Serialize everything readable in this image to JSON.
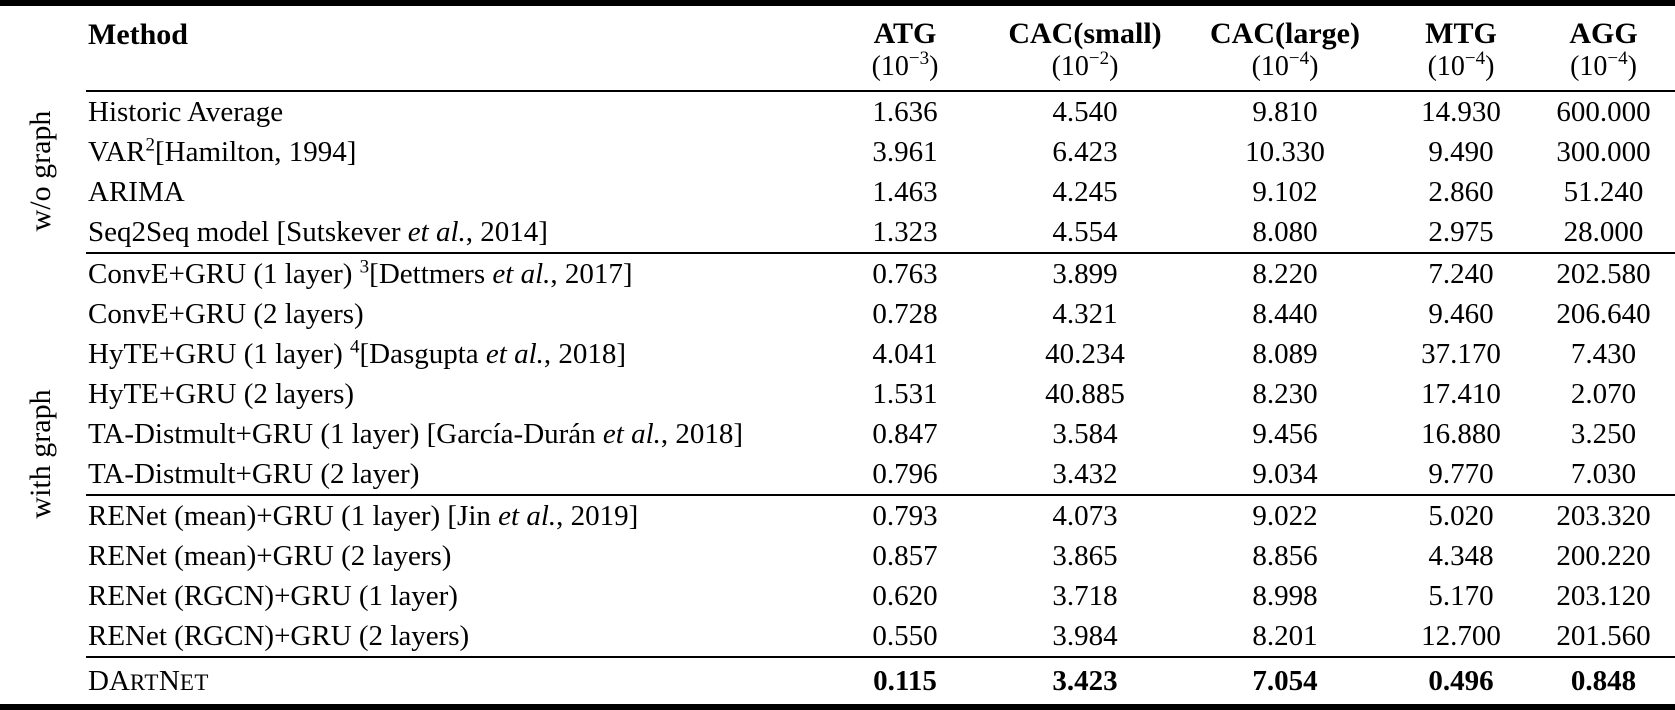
{
  "page": {
    "background": "#ffffff",
    "text_color": "#000000"
  },
  "table": {
    "header": {
      "method_label": "Method",
      "columns": [
        {
          "name": "ATG",
          "scale_pre": "(10",
          "scale_exp": "−3",
          "scale_post": ")"
        },
        {
          "name": "CAC(small)",
          "scale_pre": "(10",
          "scale_exp": "−2",
          "scale_post": ")"
        },
        {
          "name": "CAC(large)",
          "scale_pre": "(10",
          "scale_exp": "−4",
          "scale_post": ")"
        },
        {
          "name": "MTG",
          "scale_pre": "(10",
          "scale_exp": "−4",
          "scale_post": ")"
        },
        {
          "name": "AGG",
          "scale_pre": "(10",
          "scale_exp": "−4",
          "scale_post": ")"
        }
      ]
    },
    "row_groups": [
      {
        "side_label": "w/o graph",
        "blocks": [
          {
            "rows": [
              {
                "method": [
                  {
                    "t": "Historic Average"
                  }
                ],
                "values": [
                  "1.636",
                  "4.540",
                  "9.810",
                  "14.930",
                  "600.000"
                ]
              },
              {
                "method": [
                  {
                    "t": "VAR"
                  },
                  {
                    "t": "2",
                    "sup": true
                  },
                  {
                    "t": "[Hamilton, 1994]"
                  }
                ],
                "values": [
                  "3.961",
                  "6.423",
                  "10.330",
                  "9.490",
                  "300.000"
                ]
              },
              {
                "method": [
                  {
                    "t": "ARIMA"
                  }
                ],
                "values": [
                  "1.463",
                  "4.245",
                  "9.102",
                  "2.860",
                  "51.240"
                ]
              },
              {
                "method": [
                  {
                    "t": "Seq2Seq model [Sutskever "
                  },
                  {
                    "t": "et al.",
                    "i": true
                  },
                  {
                    "t": ", 2014]"
                  }
                ],
                "values": [
                  "1.323",
                  "4.554",
                  "8.080",
                  "2.975",
                  "28.000"
                ]
              }
            ]
          }
        ]
      },
      {
        "side_label": "with graph",
        "blocks": [
          {
            "rows": [
              {
                "method": [
                  {
                    "t": "ConvE+GRU (1 layer) "
                  },
                  {
                    "t": "3",
                    "sup": true
                  },
                  {
                    "t": "[Dettmers "
                  },
                  {
                    "t": "et al.",
                    "i": true
                  },
                  {
                    "t": ", 2017]"
                  }
                ],
                "values": [
                  "0.763",
                  "3.899",
                  "8.220",
                  "7.240",
                  "202.580"
                ]
              },
              {
                "method": [
                  {
                    "t": "ConvE+GRU (2 layers)"
                  }
                ],
                "values": [
                  "0.728",
                  "4.321",
                  "8.440",
                  "9.460",
                  "206.640"
                ]
              },
              {
                "method": [
                  {
                    "t": "HyTE+GRU (1 layer) "
                  },
                  {
                    "t": "4",
                    "sup": true
                  },
                  {
                    "t": "[Dasgupta "
                  },
                  {
                    "t": "et al.",
                    "i": true
                  },
                  {
                    "t": ", 2018]"
                  }
                ],
                "values": [
                  "4.041",
                  "40.234",
                  "8.089",
                  "37.170",
                  "7.430"
                ]
              },
              {
                "method": [
                  {
                    "t": "HyTE+GRU (2 layers)"
                  }
                ],
                "values": [
                  "1.531",
                  "40.885",
                  "8.230",
                  "17.410",
                  "2.070"
                ]
              },
              {
                "method": [
                  {
                    "t": "TA-Distmult+GRU (1 layer) [García-Durán "
                  },
                  {
                    "t": "et al.",
                    "i": true
                  },
                  {
                    "t": ", 2018]"
                  }
                ],
                "values": [
                  "0.847",
                  "3.584",
                  "9.456",
                  "16.880",
                  "3.250"
                ]
              },
              {
                "method": [
                  {
                    "t": "TA-Distmult+GRU (2 layer)"
                  }
                ],
                "values": [
                  "0.796",
                  "3.432",
                  "9.034",
                  "9.770",
                  "7.030"
                ]
              }
            ]
          },
          {
            "rows": [
              {
                "method": [
                  {
                    "t": "RENet (mean)+GRU (1 layer) [Jin "
                  },
                  {
                    "t": "et al.",
                    "i": true
                  },
                  {
                    "t": ", 2019]"
                  }
                ],
                "values": [
                  "0.793",
                  "4.073",
                  "9.022",
                  "5.020",
                  "203.320"
                ]
              },
              {
                "method": [
                  {
                    "t": "RENet (mean)+GRU (2 layers)"
                  }
                ],
                "values": [
                  "0.857",
                  "3.865",
                  "8.856",
                  "4.348",
                  "200.220"
                ]
              },
              {
                "method": [
                  {
                    "t": "RENet (RGCN)+GRU (1 layer)"
                  }
                ],
                "values": [
                  "0.620",
                  "3.718",
                  "8.998",
                  "5.170",
                  "203.120"
                ]
              },
              {
                "method": [
                  {
                    "t": "RENet (RGCN)+GRU (2 layers)"
                  }
                ],
                "values": [
                  "0.550",
                  "3.984",
                  "8.201",
                  "12.700",
                  "201.560"
                ]
              }
            ]
          }
        ]
      },
      {
        "side_label": "",
        "blocks": [
          {
            "rows": [
              {
                "method": [
                  {
                    "t": "DA"
                  },
                  {
                    "t": "RT",
                    "sc": true
                  },
                  {
                    "t": "N"
                  },
                  {
                    "t": "ET",
                    "sc": true
                  }
                ],
                "values": [
                  "0.115",
                  "3.423",
                  "7.054",
                  "0.496",
                  "0.848"
                ],
                "bold_values": true
              }
            ]
          }
        ]
      }
    ]
  }
}
